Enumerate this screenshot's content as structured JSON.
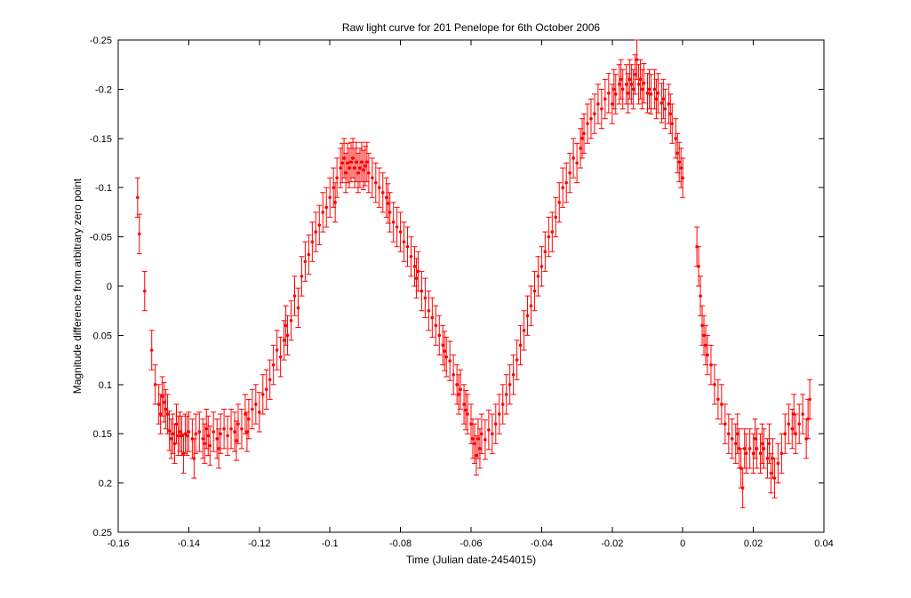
{
  "chart_data": {
    "type": "scatter",
    "title": "Raw light curve for 201 Penelope for 6th October 2006",
    "xlabel": "Time (Julian date-2454015)",
    "ylabel": "Magnitude difference from arbitrary zero point",
    "xlim": [
      -0.16,
      0.04
    ],
    "ylim": [
      -0.25,
      0.25
    ],
    "y_axis_reversed": true,
    "grid": false,
    "legend": "none",
    "background_color": "#ffffff",
    "axis_color": "#000000",
    "marker_color": "#ff0000",
    "x_ticks": [
      -0.16,
      -0.14,
      -0.12,
      -0.1,
      -0.08,
      -0.06,
      -0.04,
      -0.02,
      0,
      0.02,
      0.04
    ],
    "x_tick_labels": [
      "-0.16",
      "-0.14",
      "-0.12",
      "-0.1",
      "-0.08",
      "-0.06",
      "-0.04",
      "-0.02",
      "0",
      "0.02",
      "0.04"
    ],
    "y_ticks": [
      -0.25,
      -0.2,
      -0.15,
      -0.1,
      -0.05,
      0,
      0.05,
      0.1,
      0.15,
      0.2,
      0.25
    ],
    "y_tick_labels": [
      "-0.25",
      "-0.2",
      "-0.15",
      "-0.1",
      "-0.05",
      "0",
      "0.05",
      "0.1",
      "0.15",
      "0.2",
      "0.25"
    ],
    "yerr_default": 0.02,
    "series": [
      {
        "name": "201 Penelope raw magnitudes",
        "color": "#ff0000",
        "points": [
          [
            -0.1545,
            -0.09
          ],
          [
            -0.154,
            -0.053
          ],
          [
            -0.1525,
            0.005
          ],
          [
            -0.1505,
            0.065
          ],
          [
            -0.1495,
            0.1
          ],
          [
            -0.1485,
            0.12
          ],
          [
            -0.148,
            0.13
          ],
          [
            -0.1475,
            0.112
          ],
          [
            -0.147,
            0.118
          ],
          [
            -0.1465,
            0.125
          ],
          [
            -0.146,
            0.13
          ],
          [
            -0.1455,
            0.147
          ],
          [
            -0.145,
            0.155
          ],
          [
            -0.1445,
            0.15
          ],
          [
            -0.144,
            0.16
          ],
          [
            -0.1435,
            0.14
          ],
          [
            -0.143,
            0.152
          ],
          [
            -0.1425,
            0.148
          ],
          [
            -0.142,
            0.152
          ],
          [
            -0.1415,
            0.17
          ],
          [
            -0.141,
            0.15
          ],
          [
            -0.1405,
            0.152
          ],
          [
            -0.14,
            0.148
          ],
          [
            -0.139,
            0.155
          ],
          [
            -0.1385,
            0.175
          ],
          [
            -0.138,
            0.15
          ],
          [
            -0.137,
            0.148
          ],
          [
            -0.136,
            0.155
          ],
          [
            -0.1355,
            0.16
          ],
          [
            -0.135,
            0.145
          ],
          [
            -0.1345,
            0.152
          ],
          [
            -0.134,
            0.162
          ],
          [
            -0.133,
            0.148
          ],
          [
            -0.132,
            0.155
          ],
          [
            -0.1315,
            0.165
          ],
          [
            -0.131,
            0.15
          ],
          [
            -0.13,
            0.145
          ],
          [
            -0.129,
            0.152
          ],
          [
            -0.128,
            0.145
          ],
          [
            -0.127,
            0.148
          ],
          [
            -0.1265,
            0.157
          ],
          [
            -0.126,
            0.14
          ],
          [
            -0.125,
            0.145
          ],
          [
            -0.124,
            0.13
          ],
          [
            -0.1235,
            0.148
          ],
          [
            -0.123,
            0.135
          ],
          [
            -0.122,
            0.125
          ],
          [
            -0.121,
            0.12
          ],
          [
            -0.12,
            0.128
          ],
          [
            -0.119,
            0.11
          ],
          [
            -0.118,
            0.105
          ],
          [
            -0.117,
            0.095
          ],
          [
            -0.116,
            0.08
          ],
          [
            -0.115,
            0.065
          ],
          [
            -0.114,
            0.072
          ],
          [
            -0.113,
            0.055
          ],
          [
            -0.1125,
            0.04
          ],
          [
            -0.112,
            0.05
          ],
          [
            -0.111,
            0.035
          ],
          [
            -0.11,
            0.01
          ],
          [
            -0.109,
            0.022
          ],
          [
            -0.108,
            -0.01
          ],
          [
            -0.107,
            -0.025
          ],
          [
            -0.106,
            -0.032
          ],
          [
            -0.105,
            -0.045
          ],
          [
            -0.104,
            -0.055
          ],
          [
            -0.103,
            -0.062
          ],
          [
            -0.102,
            -0.075
          ],
          [
            -0.101,
            -0.08
          ],
          [
            -0.1,
            -0.09
          ],
          [
            -0.099,
            -0.1
          ],
          [
            -0.0985,
            -0.085
          ],
          [
            -0.098,
            -0.11
          ],
          [
            -0.097,
            -0.12
          ],
          [
            -0.0965,
            -0.125
          ],
          [
            -0.096,
            -0.13
          ],
          [
            -0.0955,
            -0.115
          ],
          [
            -0.095,
            -0.125
          ],
          [
            -0.0945,
            -0.12
          ],
          [
            -0.094,
            -0.126
          ],
          [
            -0.0935,
            -0.13
          ],
          [
            -0.093,
            -0.12
          ],
          [
            -0.0925,
            -0.126
          ],
          [
            -0.092,
            -0.115
          ],
          [
            -0.0915,
            -0.12
          ],
          [
            -0.091,
            -0.126
          ],
          [
            -0.0905,
            -0.118
          ],
          [
            -0.09,
            -0.122
          ],
          [
            -0.0895,
            -0.126
          ],
          [
            -0.089,
            -0.115
          ],
          [
            -0.088,
            -0.11
          ],
          [
            -0.087,
            -0.105
          ],
          [
            -0.086,
            -0.1
          ],
          [
            -0.085,
            -0.095
          ],
          [
            -0.084,
            -0.09
          ],
          [
            -0.0835,
            -0.084
          ],
          [
            -0.083,
            -0.075
          ],
          [
            -0.082,
            -0.065
          ],
          [
            -0.081,
            -0.06
          ],
          [
            -0.08,
            -0.055
          ],
          [
            -0.079,
            -0.045
          ],
          [
            -0.078,
            -0.04
          ],
          [
            -0.077,
            -0.03
          ],
          [
            -0.076,
            -0.02
          ],
          [
            -0.0755,
            -0.008
          ],
          [
            -0.075,
            -0.015
          ],
          [
            -0.074,
            0.005
          ],
          [
            -0.073,
            0.012
          ],
          [
            -0.072,
            0.025
          ],
          [
            -0.071,
            0.032
          ],
          [
            -0.07,
            0.04
          ],
          [
            -0.069,
            0.05
          ],
          [
            -0.068,
            0.06
          ],
          [
            -0.0675,
            0.066
          ],
          [
            -0.067,
            0.072
          ],
          [
            -0.066,
            0.076
          ],
          [
            -0.065,
            0.09
          ],
          [
            -0.064,
            0.1
          ],
          [
            -0.0635,
            0.11
          ],
          [
            -0.063,
            0.105
          ],
          [
            -0.062,
            0.12
          ],
          [
            -0.0615,
            0.126
          ],
          [
            -0.061,
            0.13
          ],
          [
            -0.06,
            0.14
          ],
          [
            -0.0595,
            0.155
          ],
          [
            -0.059,
            0.16
          ],
          [
            -0.0585,
            0.172
          ],
          [
            -0.058,
            0.155
          ],
          [
            -0.0575,
            0.165
          ],
          [
            -0.057,
            0.15
          ],
          [
            -0.056,
            0.156
          ],
          [
            -0.055,
            0.146
          ],
          [
            -0.054,
            0.15
          ],
          [
            -0.053,
            0.14
          ],
          [
            -0.052,
            0.13
          ],
          [
            -0.051,
            0.12
          ],
          [
            -0.05,
            0.11
          ],
          [
            -0.049,
            0.1
          ],
          [
            -0.048,
            0.09
          ],
          [
            -0.047,
            0.075
          ],
          [
            -0.046,
            0.06
          ],
          [
            -0.045,
            0.045
          ],
          [
            -0.044,
            0.03
          ],
          [
            -0.043,
            0.02
          ],
          [
            -0.042,
            0.005
          ],
          [
            -0.041,
            -0.01
          ],
          [
            -0.04,
            -0.02
          ],
          [
            -0.039,
            -0.035
          ],
          [
            -0.038,
            -0.05
          ],
          [
            -0.037,
            -0.055
          ],
          [
            -0.036,
            -0.07
          ],
          [
            -0.035,
            -0.085
          ],
          [
            -0.034,
            -0.1
          ],
          [
            -0.033,
            -0.105
          ],
          [
            -0.032,
            -0.115
          ],
          [
            -0.031,
            -0.13
          ],
          [
            -0.03,
            -0.125
          ],
          [
            -0.029,
            -0.14
          ],
          [
            -0.0285,
            -0.15
          ],
          [
            -0.028,
            -0.155
          ],
          [
            -0.027,
            -0.165
          ],
          [
            -0.026,
            -0.17
          ],
          [
            -0.025,
            -0.175
          ],
          [
            -0.024,
            -0.185
          ],
          [
            -0.023,
            -0.18
          ],
          [
            -0.022,
            -0.19
          ],
          [
            -0.021,
            -0.196
          ],
          [
            -0.02,
            -0.185
          ],
          [
            -0.0195,
            -0.2
          ],
          [
            -0.019,
            -0.195
          ],
          [
            -0.018,
            -0.205
          ],
          [
            -0.0175,
            -0.21
          ],
          [
            -0.017,
            -0.2
          ],
          [
            -0.016,
            -0.205
          ],
          [
            -0.0155,
            -0.196
          ],
          [
            -0.015,
            -0.21
          ],
          [
            -0.0145,
            -0.205
          ],
          [
            -0.014,
            -0.2
          ],
          [
            -0.0135,
            -0.215
          ],
          [
            -0.013,
            -0.23
          ],
          [
            -0.0125,
            -0.205
          ],
          [
            -0.012,
            -0.21
          ],
          [
            -0.0115,
            -0.2
          ],
          [
            -0.011,
            -0.206
          ],
          [
            -0.01,
            -0.196
          ],
          [
            -0.0095,
            -0.2
          ],
          [
            -0.009,
            -0.195
          ],
          [
            -0.008,
            -0.2
          ],
          [
            -0.0075,
            -0.19
          ],
          [
            -0.007,
            -0.196
          ],
          [
            -0.006,
            -0.186
          ],
          [
            -0.0055,
            -0.19
          ],
          [
            -0.005,
            -0.18
          ],
          [
            -0.004,
            -0.185
          ],
          [
            -0.0035,
            -0.175
          ],
          [
            -0.003,
            -0.165
          ],
          [
            -0.002,
            -0.15
          ],
          [
            -0.0015,
            -0.135
          ],
          [
            -0.001,
            -0.126
          ],
          [
            -0.0005,
            -0.12
          ],
          [
            0.0,
            -0.11
          ],
          [
            0.004,
            -0.04
          ],
          [
            0.0045,
            -0.02
          ],
          [
            0.005,
            0.01
          ],
          [
            0.0055,
            0.04
          ],
          [
            0.006,
            0.05
          ],
          [
            0.0065,
            0.06
          ],
          [
            0.007,
            0.07
          ],
          [
            0.008,
            0.08
          ],
          [
            0.009,
            0.1
          ],
          [
            0.01,
            0.115
          ],
          [
            0.011,
            0.12
          ],
          [
            0.012,
            0.14
          ],
          [
            0.013,
            0.15
          ],
          [
            0.014,
            0.155
          ],
          [
            0.015,
            0.16
          ],
          [
            0.0155,
            0.15
          ],
          [
            0.016,
            0.165
          ],
          [
            0.0165,
            0.185
          ],
          [
            0.017,
            0.205
          ],
          [
            0.0175,
            0.165
          ],
          [
            0.018,
            0.17
          ],
          [
            0.019,
            0.165
          ],
          [
            0.02,
            0.17
          ],
          [
            0.0205,
            0.155
          ],
          [
            0.021,
            0.165
          ],
          [
            0.022,
            0.17
          ],
          [
            0.0225,
            0.16
          ],
          [
            0.023,
            0.165
          ],
          [
            0.024,
            0.175
          ],
          [
            0.0245,
            0.16
          ],
          [
            0.025,
            0.19
          ],
          [
            0.0255,
            0.175
          ],
          [
            0.026,
            0.195
          ],
          [
            0.027,
            0.18
          ],
          [
            0.028,
            0.17
          ],
          [
            0.029,
            0.15
          ],
          [
            0.03,
            0.14
          ],
          [
            0.031,
            0.145
          ],
          [
            0.0315,
            0.13
          ],
          [
            0.032,
            0.15
          ],
          [
            0.033,
            0.14
          ],
          [
            0.034,
            0.13
          ],
          [
            0.035,
            0.155
          ],
          [
            0.0355,
            0.135
          ],
          [
            0.036,
            0.115
          ]
        ]
      }
    ]
  }
}
